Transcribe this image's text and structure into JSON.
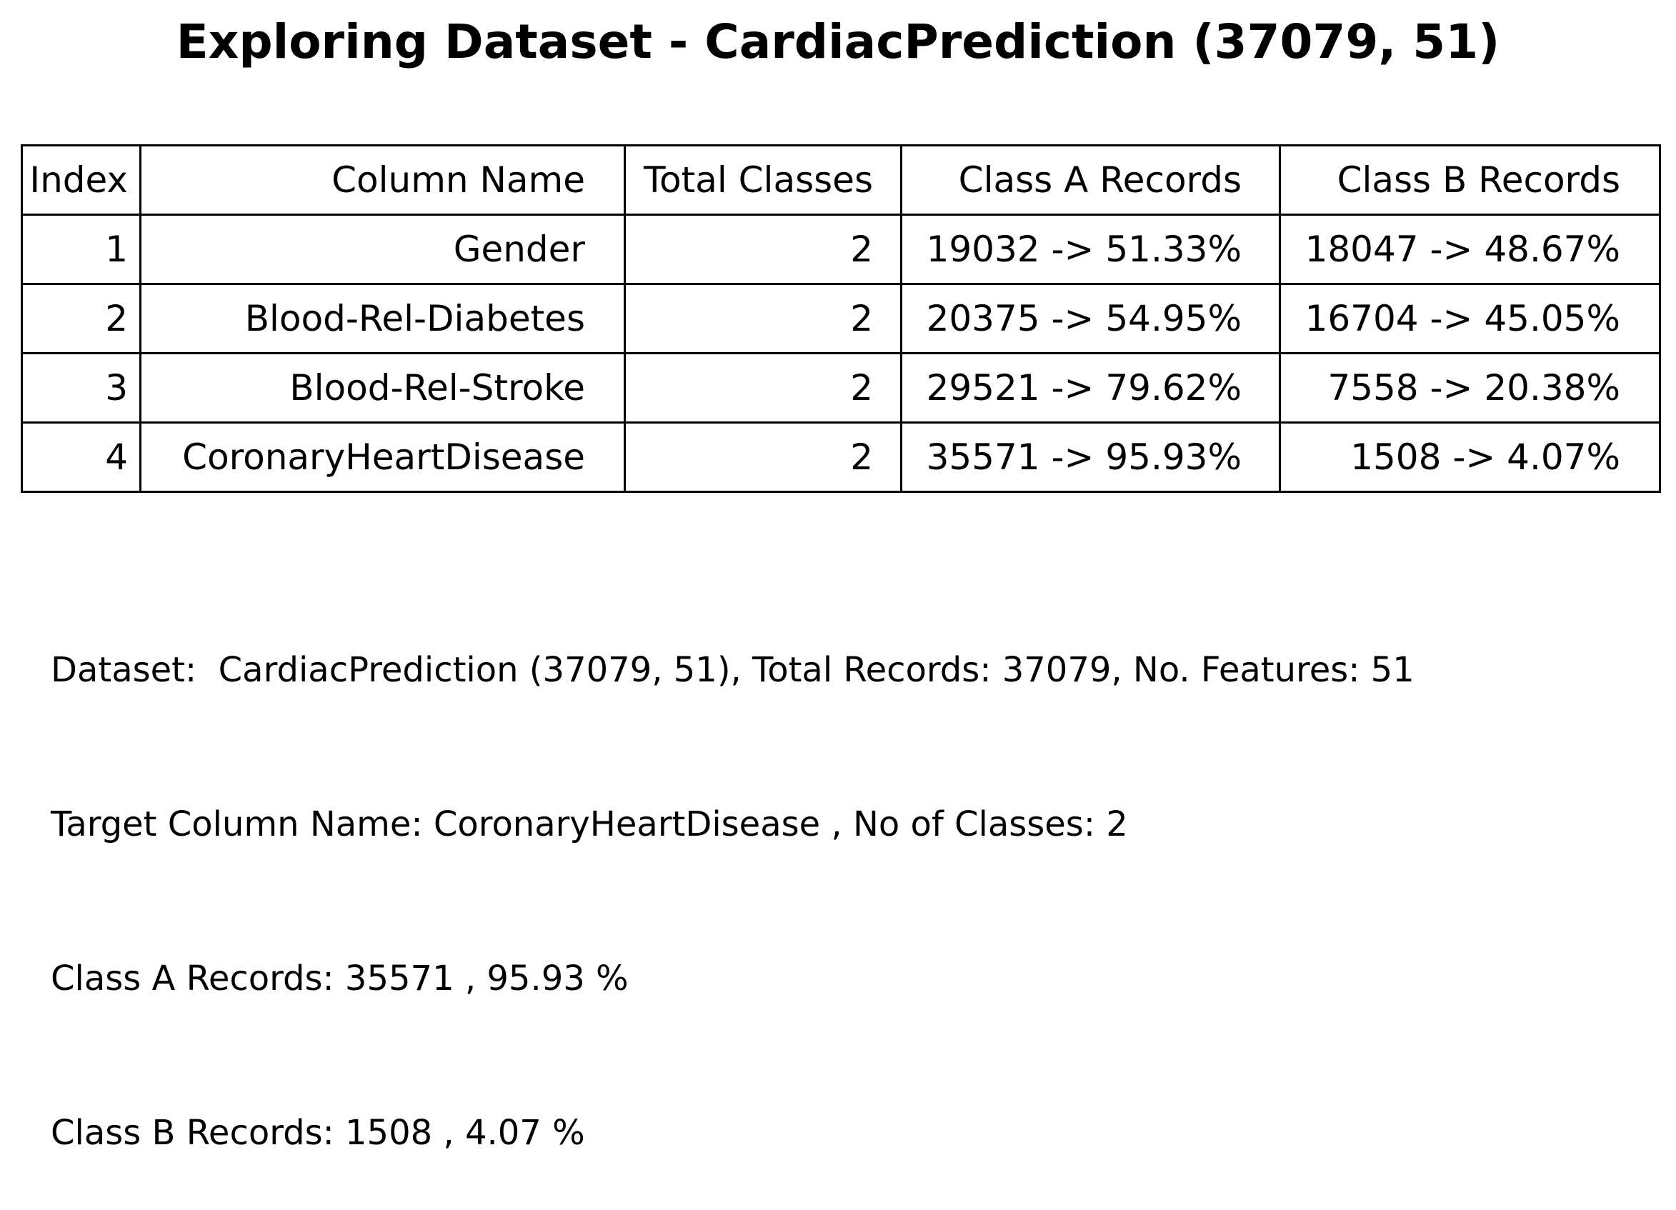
{
  "chart_data": {
    "type": "table",
    "title": "Exploring Dataset - CardiacPrediction (37079, 51)",
    "columns": [
      "Index",
      "Column Name",
      "Total Classes",
      "Class A Records",
      "Class B Records"
    ],
    "rows": [
      [
        "1",
        "Gender",
        "2",
        "19032 -> 51.33%",
        "18047 -> 48.67%"
      ],
      [
        "2",
        "Blood-Rel-Diabetes",
        "2",
        "20375 -> 54.95%",
        "16704 -> 45.05%"
      ],
      [
        "3",
        "Blood-Rel-Stroke",
        "2",
        "29521 -> 79.62%",
        "7558 -> 20.38%"
      ],
      [
        "4",
        "CoronaryHeartDisease",
        "2",
        "35571 -> 95.93%",
        "1508 -> 4.07%"
      ]
    ],
    "summary_lines": [
      "Dataset:  CardiacPrediction (37079, 51), Total Records: 37079, No. Features: 51",
      "Target Column Name: CoronaryHeartDisease , No of Classes: 2",
      "Class A Records: 35571 , 95.93 %",
      "Class B Records: 1508 , 4.07 %"
    ]
  }
}
